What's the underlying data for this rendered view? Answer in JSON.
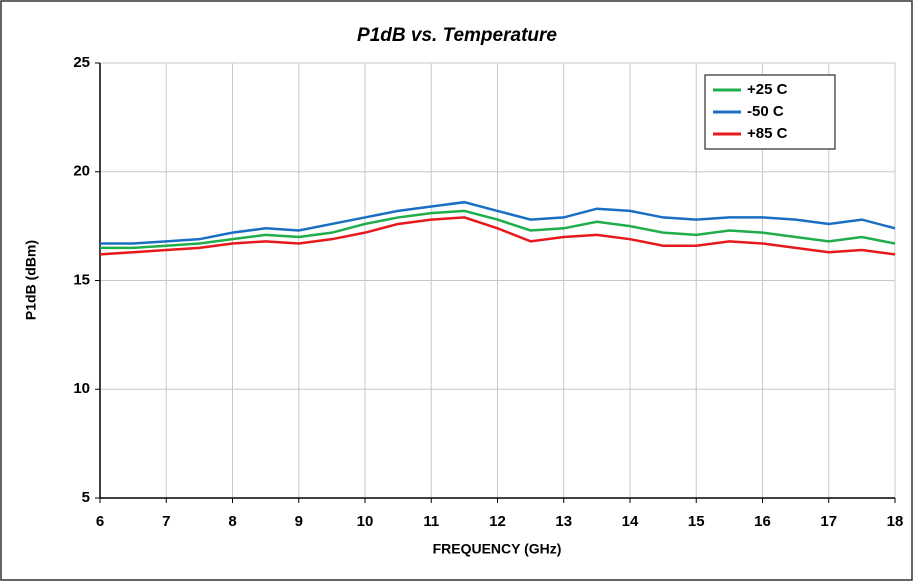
{
  "chart_data": {
    "type": "line",
    "title": "P1dB vs. Temperature",
    "x_label": "FREQUENCY (GHz)",
    "y_label": "P1dB (dBm)",
    "x": [
      6,
      6.5,
      7,
      7.5,
      8,
      8.5,
      9,
      9.5,
      10,
      10.5,
      11,
      11.5,
      12,
      12.5,
      13,
      13.5,
      14,
      14.5,
      15,
      15.5,
      16,
      16.5,
      17,
      17.5,
      18
    ],
    "series": [
      {
        "name": "+25 C",
        "color": "#1fae4b",
        "values": [
          16.5,
          16.5,
          16.6,
          16.7,
          16.9,
          17.1,
          17.0,
          17.2,
          17.6,
          17.9,
          18.1,
          18.2,
          17.8,
          17.3,
          17.4,
          17.7,
          17.5,
          17.2,
          17.1,
          17.3,
          17.2,
          17.0,
          16.8,
          17.0,
          16.7
        ]
      },
      {
        "name": "-50 C",
        "color": "#1a6fc4",
        "values": [
          16.7,
          16.7,
          16.8,
          16.9,
          17.2,
          17.4,
          17.3,
          17.6,
          17.9,
          18.2,
          18.4,
          18.6,
          18.2,
          17.8,
          17.9,
          18.3,
          18.2,
          17.9,
          17.8,
          17.9,
          17.9,
          17.8,
          17.6,
          17.8,
          17.4
        ]
      },
      {
        "name": "+85 C",
        "color": "#e8191d",
        "values": [
          16.2,
          16.3,
          16.4,
          16.5,
          16.7,
          16.8,
          16.7,
          16.9,
          17.2,
          17.6,
          17.8,
          17.9,
          17.4,
          16.8,
          17.0,
          17.1,
          16.9,
          16.6,
          16.6,
          16.8,
          16.7,
          16.5,
          16.3,
          16.4,
          16.2
        ]
      }
    ],
    "xlim": [
      6,
      18
    ],
    "xticks": [
      6,
      7,
      8,
      9,
      10,
      11,
      12,
      13,
      14,
      15,
      16,
      17,
      18
    ],
    "ylim": [
      5,
      25
    ],
    "yticks": [
      5,
      10,
      15,
      20,
      25
    ],
    "grid": true,
    "legend": "upper right"
  }
}
